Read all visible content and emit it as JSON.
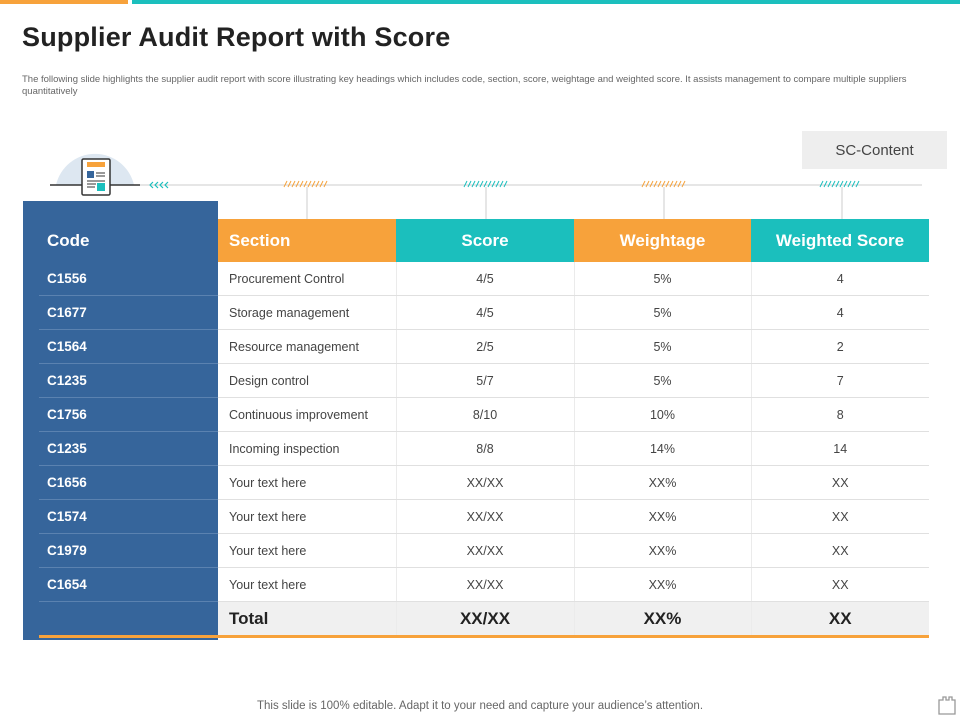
{
  "title": "Supplier Audit Report with Score",
  "subtitle": "The following slide highlights the supplier audit report with score illustrating key headings which includes code, section, score, weightage and weighted score. It assists management to compare multiple  suppliers quantitatively",
  "badge": "SC-Content",
  "table": {
    "headers": {
      "code": "Code",
      "section": "Section",
      "score": "Score",
      "weightage": "Weightage",
      "weighted_score": "Weighted Score"
    },
    "rows": [
      {
        "code": "C1556",
        "section": "Procurement  Control",
        "score": "4/5",
        "weightage": "5%",
        "weighted_score": "4"
      },
      {
        "code": "C1677",
        "section": "Storage management",
        "score": "4/5",
        "weightage": "5%",
        "weighted_score": "4"
      },
      {
        "code": "C1564",
        "section": "Resource management",
        "score": "2/5",
        "weightage": "5%",
        "weighted_score": "2"
      },
      {
        "code": "C1235",
        "section": "Design control",
        "score": "5/7",
        "weightage": "5%",
        "weighted_score": "7"
      },
      {
        "code": "C1756",
        "section": "Continuous  improvement",
        "score": "8/10",
        "weightage": "10%",
        "weighted_score": "8"
      },
      {
        "code": "C1235",
        "section": "Incoming inspection",
        "score": "8/8",
        "weightage": "14%",
        "weighted_score": "14"
      },
      {
        "code": "C1656",
        "section": "Your text here",
        "score": "XX/XX",
        "weightage": "XX%",
        "weighted_score": "XX"
      },
      {
        "code": "C1574",
        "section": "Your text here",
        "score": "XX/XX",
        "weightage": "XX%",
        "weighted_score": "XX"
      },
      {
        "code": "C1979",
        "section": "Your text here",
        "score": "XX/XX",
        "weightage": "XX%",
        "weighted_score": "XX"
      },
      {
        "code": "C1654",
        "section": "Your text here",
        "score": "XX/XX",
        "weightage": "XX%",
        "weighted_score": "XX"
      }
    ],
    "total": {
      "label": "Total",
      "score": "XX/XX",
      "weightage": "XX%",
      "weighted_score": "XX"
    }
  },
  "footer": "This slide is 100% editable. Adapt it to your need and capture your audience’s attention.",
  "icons": {
    "header": "report-document-icon",
    "corner": "tab-page-icon"
  },
  "colors": {
    "orange": "#f7a23b",
    "teal": "#1bbfbd",
    "navy": "#36659b"
  }
}
